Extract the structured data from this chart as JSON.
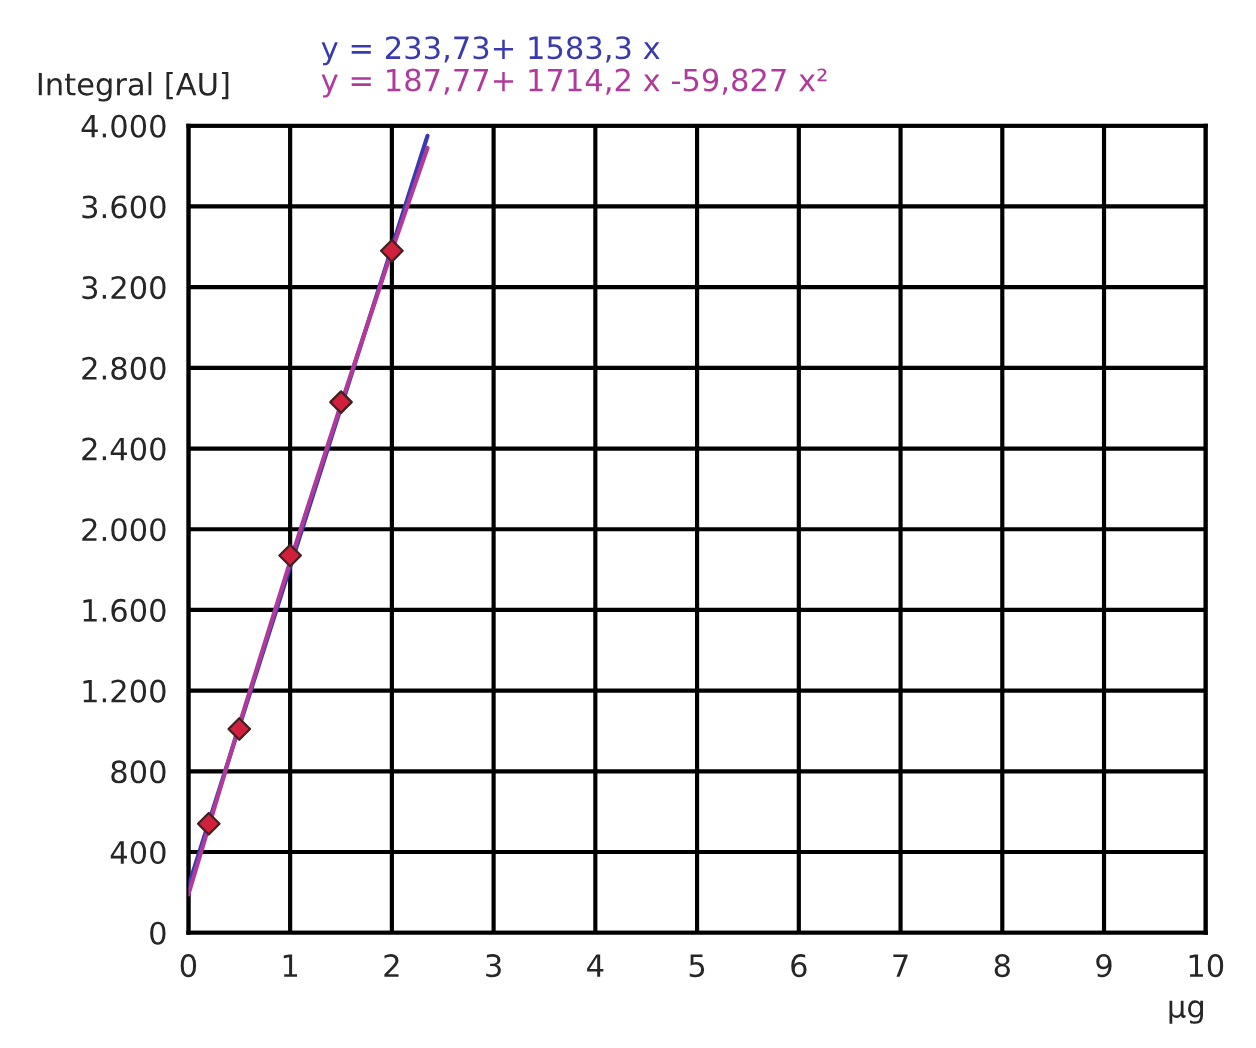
{
  "chart_data": {
    "type": "scatter",
    "xlabel": "µg",
    "ylabel": "Integral [AU]",
    "series": [
      {
        "marker": "diamond",
        "color": "#d0203c",
        "x": [
          0.2,
          0.5,
          1,
          1.5,
          2
        ],
        "values": [
          540,
          1010,
          1870,
          2630,
          3380
        ]
      },
      {
        "type": "line",
        "name": "y = 233,73+ 1583,3 x",
        "color": "#3a3ab0",
        "x": [
          0,
          2.35
        ],
        "values": [
          230,
          3950
        ]
      },
      {
        "type": "line",
        "name": "y = 187,77+ 1714,2 x -59,827 x²",
        "color": "#b03a9c",
        "x": [
          0,
          0.5,
          1,
          1.5,
          2,
          2.35
        ],
        "values": [
          190,
          1030,
          1840,
          2620,
          3380,
          3890
        ]
      }
    ],
    "xlim": [
      0,
      10
    ],
    "xticks": [
      0,
      1,
      2,
      3,
      4,
      5,
      6,
      7,
      8,
      9,
      10
    ],
    "ylim": [
      0,
      4000
    ],
    "yticks": [
      {
        "value": 0,
        "label": "0"
      },
      {
        "value": 400,
        "label": "400"
      },
      {
        "value": 800,
        "label": "800"
      },
      {
        "value": 1200,
        "label": "1.200"
      },
      {
        "value": 1600,
        "label": "1.600"
      },
      {
        "value": 2000,
        "label": "2.000"
      },
      {
        "value": 2400,
        "label": "2.400"
      },
      {
        "value": 2800,
        "label": "2.800"
      },
      {
        "value": 3200,
        "label": "3.200"
      },
      {
        "value": 3600,
        "label": "3.600"
      },
      {
        "value": 4000,
        "label": "4.000"
      }
    ],
    "grid": true,
    "legend": "top"
  }
}
